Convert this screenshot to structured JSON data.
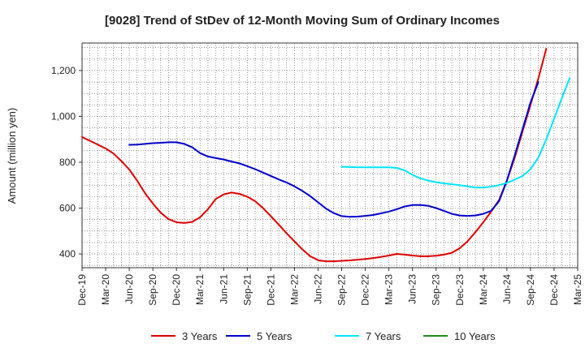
{
  "chart_data": {
    "type": "line",
    "title": "[9028]  Trend of StDev of 12-Month Moving Sum of Ordinary Incomes",
    "xlabel": "",
    "ylabel": "Amount (million yen)",
    "ylim": [
      340,
      1320
    ],
    "y_ticks": [
      400,
      600,
      800,
      1000,
      1200
    ],
    "y_tick_labels": [
      "400",
      "600",
      "800",
      "1,000",
      "1,200"
    ],
    "x_ticks": [
      "Dec-19",
      "Mar-20",
      "Jun-20",
      "Sep-20",
      "Dec-20",
      "Mar-21",
      "Jun-21",
      "Sep-21",
      "Dec-21",
      "Mar-22",
      "Jun-22",
      "Sep-22",
      "Dec-22",
      "Mar-23",
      "Jun-23",
      "Sep-23",
      "Dec-23",
      "Mar-24",
      "Jun-24",
      "Sep-24",
      "Dec-24",
      "Mar-25"
    ],
    "grid": true,
    "legend_position": "bottom",
    "series": [
      {
        "name": "3 Years",
        "color": "#dd0000",
        "points": [
          [
            0,
            910
          ],
          [
            3,
            860
          ],
          [
            4,
            838
          ],
          [
            5,
            805
          ],
          [
            6,
            768
          ],
          [
            7,
            720
          ],
          [
            8,
            665
          ],
          [
            9,
            620
          ],
          [
            10,
            580
          ],
          [
            11,
            552
          ],
          [
            12,
            538
          ],
          [
            13,
            535
          ],
          [
            14,
            540
          ],
          [
            15,
            560
          ],
          [
            16,
            595
          ],
          [
            17,
            640
          ],
          [
            18,
            660
          ],
          [
            19,
            668
          ],
          [
            20,
            662
          ],
          [
            21,
            650
          ],
          [
            22,
            630
          ],
          [
            23,
            600
          ],
          [
            24,
            565
          ],
          [
            25,
            528
          ],
          [
            26,
            490
          ],
          [
            27,
            455
          ],
          [
            28,
            420
          ],
          [
            29,
            390
          ],
          [
            30,
            373
          ],
          [
            31,
            368
          ],
          [
            32,
            368
          ],
          [
            33,
            370
          ],
          [
            34,
            372
          ],
          [
            35,
            375
          ],
          [
            36,
            378
          ],
          [
            37,
            382
          ],
          [
            38,
            387
          ],
          [
            39,
            393
          ],
          [
            40,
            400
          ],
          [
            41,
            397
          ],
          [
            42,
            393
          ],
          [
            43,
            390
          ],
          [
            44,
            390
          ],
          [
            45,
            392
          ],
          [
            46,
            397
          ],
          [
            47,
            405
          ],
          [
            48,
            425
          ],
          [
            49,
            455
          ],
          [
            50,
            495
          ],
          [
            51,
            538
          ],
          [
            52,
            585
          ],
          [
            53,
            635
          ],
          [
            54,
            720
          ],
          [
            55,
            820
          ],
          [
            56,
            935
          ],
          [
            57,
            1050
          ],
          [
            58,
            1165
          ],
          [
            59,
            1295
          ]
        ]
      },
      {
        "name": "5 Years",
        "color": "#0000cc",
        "points": [
          [
            6,
            876
          ],
          [
            7,
            877
          ],
          [
            8,
            880
          ],
          [
            9,
            883
          ],
          [
            10,
            885
          ],
          [
            11,
            887
          ],
          [
            12,
            887
          ],
          [
            13,
            880
          ],
          [
            14,
            865
          ],
          [
            15,
            840
          ],
          [
            16,
            825
          ],
          [
            17,
            818
          ],
          [
            18,
            812
          ],
          [
            19,
            803
          ],
          [
            20,
            795
          ],
          [
            21,
            783
          ],
          [
            22,
            770
          ],
          [
            23,
            755
          ],
          [
            24,
            740
          ],
          [
            25,
            725
          ],
          [
            26,
            712
          ],
          [
            27,
            695
          ],
          [
            28,
            675
          ],
          [
            29,
            652
          ],
          [
            30,
            625
          ],
          [
            31,
            598
          ],
          [
            32,
            578
          ],
          [
            33,
            565
          ],
          [
            34,
            562
          ],
          [
            35,
            563
          ],
          [
            36,
            566
          ],
          [
            37,
            570
          ],
          [
            38,
            577
          ],
          [
            39,
            585
          ],
          [
            40,
            595
          ],
          [
            41,
            607
          ],
          [
            42,
            613
          ],
          [
            43,
            614
          ],
          [
            44,
            610
          ],
          [
            45,
            600
          ],
          [
            46,
            588
          ],
          [
            47,
            575
          ],
          [
            48,
            568
          ],
          [
            49,
            566
          ],
          [
            50,
            568
          ],
          [
            51,
            575
          ],
          [
            52,
            588
          ],
          [
            53,
            630
          ],
          [
            54,
            720
          ],
          [
            55,
            830
          ],
          [
            56,
            945
          ],
          [
            57,
            1060
          ],
          [
            58,
            1150
          ]
        ]
      },
      {
        "name": "7 Years",
        "color": "#00e5ff",
        "points": [
          [
            33,
            780
          ],
          [
            34,
            779
          ],
          [
            35,
            778
          ],
          [
            36,
            778
          ],
          [
            37,
            778
          ],
          [
            38,
            778
          ],
          [
            39,
            778
          ],
          [
            40,
            775
          ],
          [
            41,
            765
          ],
          [
            42,
            745
          ],
          [
            43,
            730
          ],
          [
            44,
            720
          ],
          [
            45,
            713
          ],
          [
            46,
            708
          ],
          [
            47,
            704
          ],
          [
            48,
            700
          ],
          [
            49,
            695
          ],
          [
            50,
            690
          ],
          [
            51,
            690
          ],
          [
            52,
            693
          ],
          [
            53,
            700
          ],
          [
            54,
            710
          ],
          [
            55,
            724
          ],
          [
            56,
            740
          ],
          [
            57,
            770
          ],
          [
            58,
            820
          ],
          [
            59,
            900
          ],
          [
            60,
            990
          ],
          [
            61,
            1080
          ],
          [
            62,
            1168
          ]
        ]
      },
      {
        "name": "10 Years",
        "color": "#228b22",
        "points": []
      }
    ]
  }
}
